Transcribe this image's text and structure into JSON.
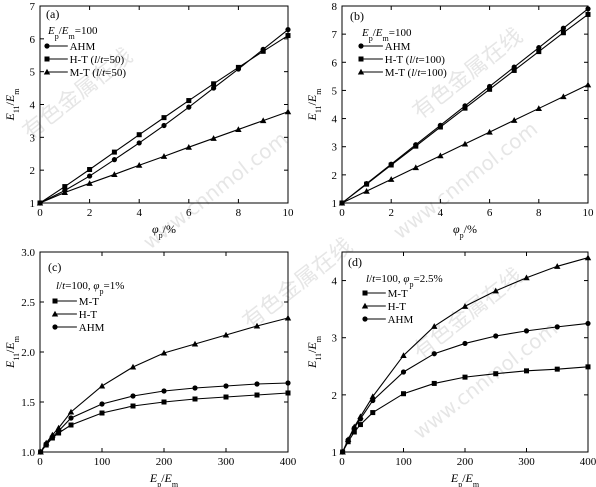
{
  "watermark": {
    "cn": "有色金属在线",
    "url": "www.cnnmol.com"
  },
  "chart_data": [
    {
      "id": "a",
      "type": "line",
      "panel_label": "(a)",
      "annotation_lines": [
        "Ep/Em=100"
      ],
      "xlabel": "φp/%",
      "ylabel": "E11/Em",
      "xlim": [
        0,
        10
      ],
      "ylim": [
        1,
        7
      ],
      "xticks": [
        0,
        2,
        4,
        6,
        8,
        10
      ],
      "yticks": [
        1,
        2,
        3,
        4,
        5,
        6,
        7
      ],
      "legend_position": "top-left",
      "series": [
        {
          "name": "AHM",
          "marker": "circle",
          "x": [
            0,
            1,
            2,
            3,
            4,
            5,
            6,
            7,
            8,
            9,
            10
          ],
          "values": [
            1,
            1.38,
            1.82,
            2.32,
            2.83,
            3.36,
            3.92,
            4.5,
            5.08,
            5.68,
            6.28
          ]
        },
        {
          "name": "H-T (l/t=50)",
          "marker": "square",
          "x": [
            0,
            1,
            2,
            3,
            4,
            5,
            6,
            7,
            8,
            9,
            10
          ],
          "values": [
            1,
            1.5,
            2.02,
            2.55,
            3.08,
            3.6,
            4.12,
            4.63,
            5.13,
            5.62,
            6.1
          ]
        },
        {
          "name": "M-T (l/t=50)",
          "marker": "triangle",
          "x": [
            0,
            1,
            2,
            3,
            4,
            5,
            6,
            7,
            8,
            9,
            10
          ],
          "values": [
            1,
            1.32,
            1.6,
            1.87,
            2.15,
            2.42,
            2.7,
            2.97,
            3.24,
            3.51,
            3.78
          ]
        }
      ]
    },
    {
      "id": "b",
      "type": "line",
      "panel_label": "(b)",
      "annotation_lines": [
        "Ep/Em=100"
      ],
      "xlabel": "φp/%",
      "ylabel": "E11/Em",
      "xlim": [
        0,
        10
      ],
      "ylim": [
        1,
        8
      ],
      "xticks": [
        0,
        2,
        4,
        6,
        8,
        10
      ],
      "yticks": [
        1,
        2,
        3,
        4,
        5,
        6,
        7,
        8
      ],
      "legend_position": "top-left",
      "series": [
        {
          "name": "AHM",
          "marker": "circle",
          "x": [
            0,
            1,
            2,
            3,
            4,
            5,
            6,
            7,
            8,
            9,
            10
          ],
          "values": [
            1,
            1.69,
            2.38,
            3.07,
            3.76,
            4.45,
            5.14,
            5.83,
            6.52,
            7.21,
            7.9
          ]
        },
        {
          "name": "H-T (l/t=100)",
          "marker": "square",
          "x": [
            0,
            1,
            2,
            3,
            4,
            5,
            6,
            7,
            8,
            9,
            10
          ],
          "values": [
            1,
            1.67,
            2.35,
            3.02,
            3.7,
            4.37,
            5.04,
            5.71,
            6.38,
            7.05,
            7.7
          ]
        },
        {
          "name": "M-T (l/t=100)",
          "marker": "triangle",
          "x": [
            0,
            1,
            2,
            3,
            4,
            5,
            6,
            7,
            8,
            9,
            10
          ],
          "values": [
            1,
            1.42,
            1.84,
            2.26,
            2.68,
            3.1,
            3.52,
            3.94,
            4.36,
            4.78,
            5.2
          ]
        }
      ]
    },
    {
      "id": "c",
      "type": "line",
      "panel_label": "(c)",
      "annotation_lines": [
        "l/t=100, φp=1%"
      ],
      "xlabel": "Ep/Em",
      "ylabel": "E11/Em",
      "xlim": [
        0,
        400
      ],
      "ylim": [
        1.0,
        3.0
      ],
      "xticks": [
        0,
        100,
        200,
        300,
        400
      ],
      "yticks": [
        1.0,
        1.5,
        2.0,
        2.5,
        3.0
      ],
      "legend_position": "top-left",
      "series": [
        {
          "name": "M-T",
          "marker": "square",
          "x": [
            1,
            10,
            20,
            30,
            50,
            100,
            150,
            200,
            250,
            300,
            350,
            400
          ],
          "values": [
            1.0,
            1.07,
            1.14,
            1.19,
            1.27,
            1.39,
            1.46,
            1.5,
            1.53,
            1.55,
            1.57,
            1.59
          ]
        },
        {
          "name": "H-T",
          "marker": "triangle",
          "x": [
            1,
            10,
            20,
            30,
            50,
            100,
            150,
            200,
            250,
            300,
            350,
            400
          ],
          "values": [
            1.0,
            1.09,
            1.17,
            1.24,
            1.4,
            1.66,
            1.85,
            1.99,
            2.08,
            2.17,
            2.26,
            2.34
          ]
        },
        {
          "name": "AHM",
          "marker": "circle",
          "x": [
            1,
            10,
            20,
            30,
            50,
            100,
            150,
            200,
            250,
            300,
            350,
            400
          ],
          "values": [
            1.0,
            1.08,
            1.15,
            1.21,
            1.34,
            1.48,
            1.56,
            1.61,
            1.64,
            1.66,
            1.68,
            1.69
          ]
        }
      ]
    },
    {
      "id": "d",
      "type": "line",
      "panel_label": "(d)",
      "annotation_lines": [
        "l/t=100, φp=2.5%"
      ],
      "xlabel": "Ep/Em",
      "ylabel": "E11/Em",
      "xlim": [
        0,
        400
      ],
      "ylim": [
        1,
        4.5
      ],
      "xticks": [
        0,
        100,
        200,
        300,
        400
      ],
      "yticks": [
        1,
        2,
        3,
        4
      ],
      "legend_position": "top-left",
      "series": [
        {
          "name": "M-T",
          "marker": "square",
          "x": [
            1,
            10,
            20,
            30,
            50,
            100,
            150,
            200,
            250,
            300,
            350,
            400
          ],
          "values": [
            1.0,
            1.18,
            1.35,
            1.48,
            1.69,
            2.02,
            2.2,
            2.31,
            2.37,
            2.42,
            2.45,
            2.49
          ]
        },
        {
          "name": "H-T",
          "marker": "triangle",
          "x": [
            1,
            10,
            20,
            30,
            50,
            100,
            150,
            200,
            250,
            300,
            350,
            400
          ],
          "values": [
            1.0,
            1.22,
            1.44,
            1.62,
            1.97,
            2.69,
            3.2,
            3.55,
            3.82,
            4.05,
            4.25,
            4.4
          ]
        },
        {
          "name": "AHM",
          "marker": "circle",
          "x": [
            1,
            10,
            20,
            30,
            50,
            100,
            150,
            200,
            250,
            300,
            350,
            400
          ],
          "values": [
            1.0,
            1.21,
            1.42,
            1.58,
            1.9,
            2.4,
            2.72,
            2.9,
            3.03,
            3.12,
            3.19,
            3.25
          ]
        }
      ]
    }
  ]
}
